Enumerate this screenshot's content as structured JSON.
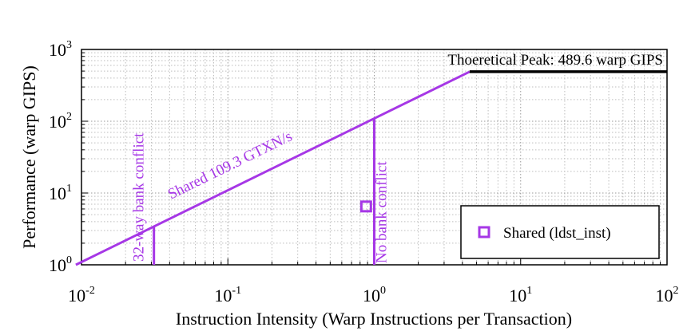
{
  "chart_data": {
    "type": "line",
    "xlabel": "Instruction Intensity (Warp Instructions per Transaction)",
    "ylabel": "Performance (warp GIPS)",
    "x_scale": "log",
    "y_scale": "log",
    "xlim": [
      0.01,
      100
    ],
    "ylim": [
      1,
      1000
    ],
    "x_ticks": [
      {
        "value": 0.01,
        "base": "10",
        "exp": "-2"
      },
      {
        "value": 0.1,
        "base": "10",
        "exp": "-1"
      },
      {
        "value": 1,
        "base": "10",
        "exp": "0"
      },
      {
        "value": 10,
        "base": "10",
        "exp": "1"
      },
      {
        "value": 100,
        "base": "10",
        "exp": "2"
      }
    ],
    "y_ticks": [
      {
        "value": 1,
        "base": "10",
        "exp": "0"
      },
      {
        "value": 10,
        "base": "10",
        "exp": "1"
      },
      {
        "value": 100,
        "base": "10",
        "exp": "2"
      },
      {
        "value": 1000,
        "base": "10",
        "exp": "3"
      }
    ],
    "grid": true,
    "roofline": {
      "shared_bandwidth_label": "Shared 109.3 GTXN/s",
      "bandwidth": 109.3,
      "peak_label": "Thoeretical Peak: 489.6 warp GIPS",
      "peak": 489.6,
      "color": "#a637e6",
      "peak_color": "#000000"
    },
    "walls": [
      {
        "label": "32-way bank conflict",
        "x": 0.03125
      },
      {
        "label": "No bank conflict",
        "x": 1
      }
    ],
    "series": [
      {
        "name": "Shared (ldst_inst)",
        "marker": "square",
        "color": "#a637e6",
        "points": [
          {
            "x": 0.88,
            "y": 6.5
          }
        ]
      }
    ],
    "legend_position": "bottom-right"
  }
}
